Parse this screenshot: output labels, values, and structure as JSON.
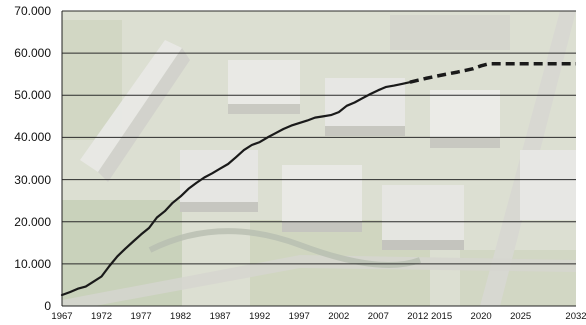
{
  "chart_data": {
    "type": "line",
    "title": "",
    "xlabel": "",
    "ylabel": "",
    "background": "aerial photograph of a residential neighbourhood with apartment blocks",
    "grid": true,
    "xlim": [
      1967,
      2032
    ],
    "ylim": [
      0,
      70000
    ],
    "x_ticks": [
      "1967",
      "1972",
      "1977",
      "1982",
      "1987",
      "1992",
      "1997",
      "2002",
      "2007",
      "2012",
      "2015",
      "2020",
      "2025",
      "2032"
    ],
    "y_ticks": [
      "0",
      "10.000",
      "20.000",
      "30.000",
      "40.000",
      "50.000",
      "60.000",
      "70.000"
    ],
    "y_tick_values": [
      0,
      10000,
      20000,
      30000,
      40000,
      50000,
      60000,
      70000
    ],
    "colors": {
      "line": "#1a1a1a",
      "grid": "#2b2b2b",
      "photo_tint": "#d6d8c9"
    },
    "series": [
      {
        "style": "solid",
        "points": [
          [
            1967,
            2600
          ],
          [
            1968,
            3300
          ],
          [
            1969,
            4100
          ],
          [
            1970,
            4600
          ],
          [
            1971,
            5800
          ],
          [
            1972,
            7000
          ],
          [
            1973,
            9500
          ],
          [
            1974,
            11800
          ],
          [
            1975,
            13600
          ],
          [
            1976,
            15300
          ],
          [
            1977,
            17000
          ],
          [
            1978,
            18500
          ],
          [
            1979,
            21000
          ],
          [
            1980,
            22500
          ],
          [
            1981,
            24500
          ],
          [
            1982,
            26000
          ],
          [
            1983,
            27800
          ],
          [
            1984,
            29200
          ],
          [
            1985,
            30500
          ],
          [
            1986,
            31500
          ],
          [
            1987,
            32600
          ],
          [
            1988,
            33700
          ],
          [
            1989,
            35300
          ],
          [
            1990,
            37000
          ],
          [
            1991,
            38200
          ],
          [
            1992,
            38900
          ],
          [
            1993,
            40000
          ],
          [
            1994,
            41000
          ],
          [
            1995,
            42000
          ],
          [
            1996,
            42800
          ],
          [
            1997,
            43400
          ],
          [
            1998,
            44000
          ],
          [
            1999,
            44700
          ],
          [
            2000,
            45000
          ],
          [
            2001,
            45300
          ],
          [
            2002,
            46000
          ],
          [
            2003,
            47500
          ],
          [
            2004,
            48300
          ],
          [
            2005,
            49300
          ],
          [
            2006,
            50300
          ],
          [
            2007,
            51200
          ],
          [
            2008,
            52000
          ],
          [
            2009,
            52300
          ],
          [
            2010,
            52700
          ],
          [
            2011,
            53100
          ]
        ]
      },
      {
        "style": "dashed",
        "points": [
          [
            2011,
            53100
          ],
          [
            2013,
            54000
          ],
          [
            2015,
            54800
          ],
          [
            2017,
            55500
          ],
          [
            2019,
            56300
          ],
          [
            2020,
            57000
          ],
          [
            2021,
            57500
          ],
          [
            2023,
            57500
          ],
          [
            2025,
            57500
          ],
          [
            2028,
            57500
          ],
          [
            2032,
            57500
          ]
        ]
      }
    ]
  }
}
